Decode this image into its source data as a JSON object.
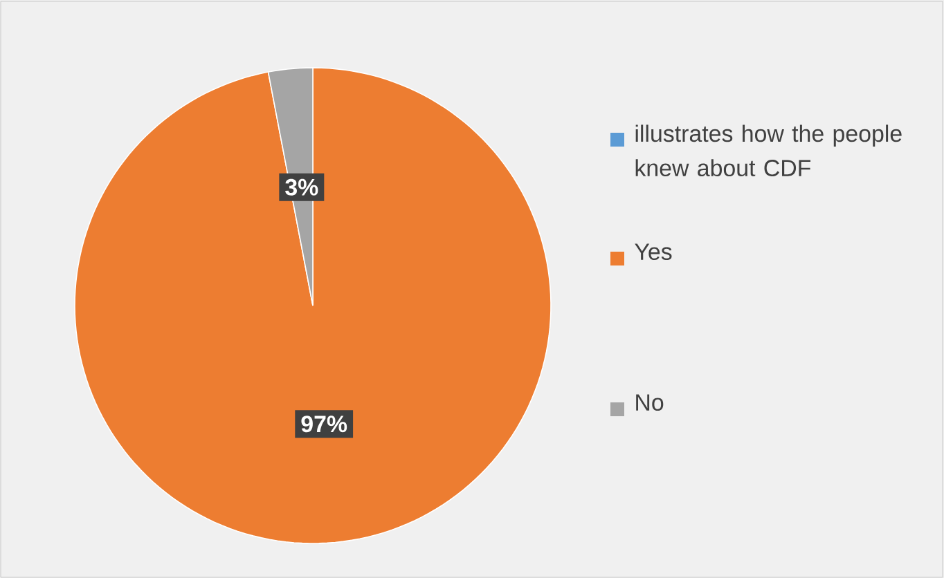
{
  "chart_data": {
    "type": "pie",
    "categories": [
      "illustrates how the people knew about CDF",
      "Yes",
      "No"
    ],
    "values": [
      0,
      97,
      3
    ],
    "colors": [
      "#5b9bd5",
      "#ed7d31",
      "#a5a5a5"
    ],
    "value_labels": [
      null,
      "97%",
      "3%"
    ],
    "legend": "right"
  }
}
